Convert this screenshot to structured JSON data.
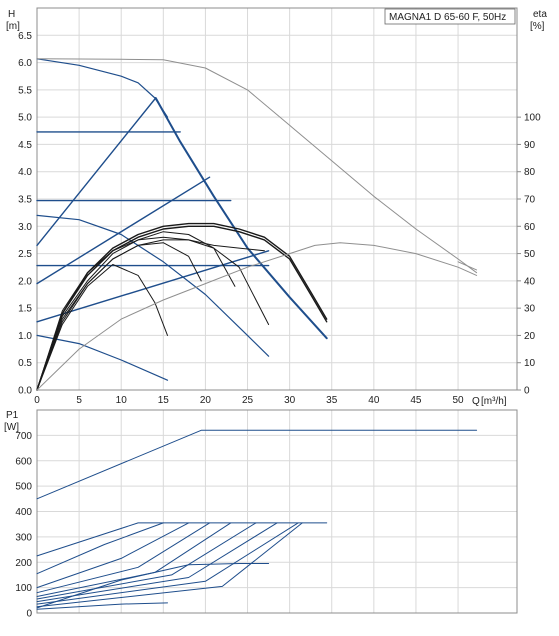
{
  "chart_data": [
    {
      "type": "line",
      "title": "MAGNA1 D 65-60 F, 50Hz",
      "ylabel": "H",
      "yunit": "[m]",
      "y2label": "eta",
      "y2unit": "[%]",
      "xlabel": "Q",
      "xunit": "[m³/h]",
      "xlim": [
        0,
        57
      ],
      "ylim": [
        0,
        7
      ],
      "y2lim": [
        0,
        140
      ],
      "xticks": [
        "0",
        "5",
        "10",
        "15",
        "20",
        "25",
        "30",
        "35",
        "40",
        "45",
        "50"
      ],
      "yticks": [
        "0.0",
        "0.5",
        "1.0",
        "1.5",
        "2.0",
        "2.5",
        "3.0",
        "3.5",
        "4.0",
        "4.5",
        "5.0",
        "5.5",
        "6.0",
        "6.5"
      ],
      "y2ticks": [
        "0",
        "10",
        "20",
        "30",
        "40",
        "50",
        "60",
        "70",
        "80",
        "90",
        "100"
      ],
      "grid": true,
      "series": [
        {
          "kind": "head",
          "color": "#1f4e8c",
          "width": 1.2,
          "x": [
            0,
            5,
            10,
            12,
            14,
            15.5
          ],
          "y": [
            6.07,
            5.95,
            5.75,
            5.63,
            5.35,
            5.0
          ]
        },
        {
          "kind": "head",
          "color": "#1f4e8c",
          "width": 2,
          "x": [
            14.1,
            17,
            21,
            25,
            30,
            34.4
          ],
          "y": [
            5.35,
            4.55,
            3.55,
            2.6,
            1.7,
            0.95
          ]
        },
        {
          "kind": "head",
          "color": "#8f8f8f",
          "width": 1,
          "x": [
            0,
            10,
            15,
            20,
            25,
            30,
            35,
            40,
            45,
            50,
            52.2
          ],
          "y": [
            6.07,
            6.06,
            6.05,
            5.9,
            5.5,
            4.85,
            4.2,
            3.55,
            2.95,
            2.4,
            2.15
          ]
        },
        {
          "kind": "head",
          "color": "#8f8f8f",
          "width": 1,
          "x": [
            50,
            52.2
          ],
          "y": [
            2.35,
            2.2
          ]
        },
        {
          "kind": "head",
          "color": "#1f4e8c",
          "width": 1.4,
          "x": [
            0,
            17
          ],
          "y": [
            4.73,
            4.73
          ]
        },
        {
          "kind": "head",
          "color": "#1f4e8c",
          "width": 1.4,
          "x": [
            0,
            23
          ],
          "y": [
            3.47,
            3.47
          ]
        },
        {
          "kind": "head",
          "color": "#1f4e8c",
          "width": 1.4,
          "x": [
            0,
            27.5
          ],
          "y": [
            2.28,
            2.28
          ]
        },
        {
          "kind": "head",
          "color": "#1f4e8c",
          "width": 1.4,
          "x": [
            0,
            14.1
          ],
          "y": [
            2.65,
            5.35
          ]
        },
        {
          "kind": "head",
          "color": "#1f4e8c",
          "width": 1.4,
          "x": [
            0,
            20.5
          ],
          "y": [
            1.95,
            3.9
          ]
        },
        {
          "kind": "head",
          "color": "#1f4e8c",
          "width": 1.4,
          "x": [
            0,
            27.5
          ],
          "y": [
            1.25,
            2.55
          ]
        },
        {
          "kind": "head",
          "color": "#1f4e8c",
          "width": 1.2,
          "x": [
            0,
            5,
            10,
            15,
            20,
            25,
            27.5
          ],
          "y": [
            3.2,
            3.12,
            2.85,
            2.35,
            1.75,
            1.0,
            0.62
          ]
        },
        {
          "kind": "head",
          "color": "#1f4e8c",
          "width": 1.2,
          "x": [
            0,
            5,
            10,
            15.5
          ],
          "y": [
            1.0,
            0.85,
            0.55,
            0.18
          ]
        },
        {
          "kind": "eta",
          "color": "#1a1a1a",
          "width": 1,
          "x": [
            0,
            3,
            6,
            9,
            12,
            14,
            15.5
          ],
          "y": [
            0,
            24,
            38,
            46,
            42,
            32,
            20
          ]
        },
        {
          "kind": "eta",
          "color": "#1a1a1a",
          "width": 1,
          "x": [
            0,
            3,
            6,
            9,
            12,
            15,
            18,
            21,
            24,
            27.5
          ],
          "y": [
            0,
            25,
            39,
            48,
            53,
            55,
            55,
            52,
            45,
            24
          ]
        },
        {
          "kind": "eta",
          "color": "#1a1a1a",
          "width": 1,
          "x": [
            0,
            3,
            6,
            9,
            12,
            15,
            18,
            21,
            23.5
          ],
          "y": [
            0,
            27,
            40,
            50,
            55,
            58,
            57,
            52,
            38
          ]
        },
        {
          "kind": "eta",
          "color": "#1a1a1a",
          "width": 1,
          "x": [
            0,
            3,
            6,
            9,
            12,
            15,
            18,
            19.5
          ],
          "y": [
            0,
            26,
            39,
            48,
            53,
            54,
            49,
            40
          ]
        },
        {
          "kind": "eta",
          "color": "#1a1a1a",
          "width": 1.4,
          "x": [
            0,
            3,
            6,
            9,
            12,
            15,
            18,
            21,
            24,
            27,
            30,
            32.5,
            34.4
          ],
          "y": [
            0,
            28,
            42,
            51,
            56,
            59,
            60,
            60,
            58,
            55,
            48,
            35,
            25
          ]
        },
        {
          "kind": "eta",
          "color": "#1a1a1a",
          "width": 1.4,
          "x": [
            0,
            3,
            6,
            9,
            12,
            15,
            18,
            21,
            24,
            27,
            30,
            32.5,
            34.4
          ],
          "y": [
            0,
            28,
            43,
            52,
            57,
            60,
            61,
            61,
            59,
            56,
            49,
            36,
            26
          ]
        },
        {
          "kind": "eta",
          "color": "#1a1a1a",
          "width": 1,
          "x": [
            0,
            3,
            6,
            9,
            12,
            15,
            18,
            21,
            24,
            27
          ],
          "y": [
            0,
            29,
            43,
            51,
            55,
            56,
            55,
            53,
            52,
            51
          ]
        },
        {
          "kind": "eta",
          "color": "#8f8f8f",
          "width": 1,
          "x": [
            0,
            5,
            10,
            15,
            20,
            25,
            30,
            33,
            36,
            40,
            45,
            50,
            52.2
          ],
          "y": [
            0,
            15,
            26,
            33,
            39,
            45,
            50,
            53,
            54,
            53,
            50,
            45,
            42
          ]
        }
      ]
    },
    {
      "type": "line",
      "ylabel": "P1",
      "yunit": "[W]",
      "xlim": [
        0,
        57
      ],
      "ylim": [
        0,
        800
      ],
      "yticks": [
        "0",
        "100",
        "200",
        "300",
        "400",
        "500",
        "600",
        "700"
      ],
      "grid": true,
      "series": [
        {
          "color": "#1f4e8c",
          "width": 1,
          "x": [
            0,
            19.5,
            52.2
          ],
          "y": [
            450,
            720,
            720
          ]
        },
        {
          "color": "#1f4e8c",
          "width": 1,
          "x": [
            0,
            12,
            34.4
          ],
          "y": [
            225,
            355,
            355
          ]
        },
        {
          "color": "#1f4e8c",
          "width": 1,
          "x": [
            0,
            8,
            15
          ],
          "y": [
            155,
            270,
            355
          ]
        },
        {
          "color": "#1f4e8c",
          "width": 1,
          "x": [
            0,
            10,
            18
          ],
          "y": [
            100,
            215,
            355
          ]
        },
        {
          "color": "#1f4e8c",
          "width": 1,
          "x": [
            0,
            12,
            20.5
          ],
          "y": [
            80,
            180,
            355
          ]
        },
        {
          "color": "#1f4e8c",
          "width": 1,
          "x": [
            0,
            14,
            23
          ],
          "y": [
            65,
            160,
            355
          ]
        },
        {
          "color": "#1f4e8c",
          "width": 1,
          "x": [
            0,
            16,
            26
          ],
          "y": [
            55,
            150,
            355
          ]
        },
        {
          "color": "#1f4e8c",
          "width": 1,
          "x": [
            0,
            18,
            28.5
          ],
          "y": [
            45,
            140,
            355
          ]
        },
        {
          "color": "#1f4e8c",
          "width": 1,
          "x": [
            0,
            20,
            31
          ],
          "y": [
            35,
            125,
            355
          ]
        },
        {
          "color": "#1f4e8c",
          "width": 1,
          "x": [
            0,
            22,
            31.5
          ],
          "y": [
            25,
            105,
            355
          ]
        },
        {
          "color": "#1f4e8c",
          "width": 1,
          "x": [
            0,
            10,
            18,
            24,
            27.5
          ],
          "y": [
            20,
            130,
            190,
            195,
            195
          ]
        },
        {
          "color": "#1f4e8c",
          "width": 1,
          "x": [
            0,
            10,
            15.5
          ],
          "y": [
            15,
            35,
            40
          ]
        }
      ]
    }
  ]
}
